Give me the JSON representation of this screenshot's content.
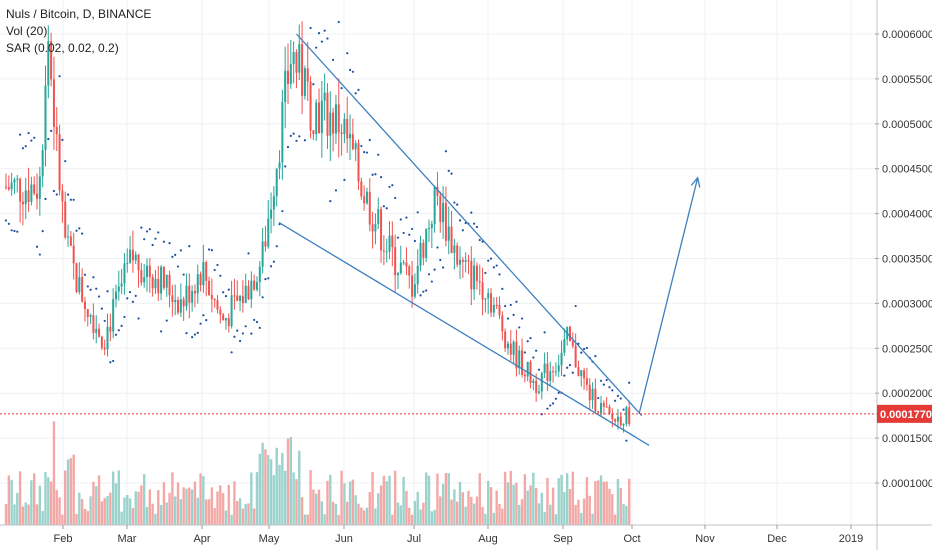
{
  "header": {
    "title": "Nuls / Bitcoin, D, BINANCE",
    "indicator_vol": "Vol (20)",
    "indicator_sar": "SAR (0.02, 0.02, 0.2)"
  },
  "chart_data": {
    "type": "candlestick",
    "y_ticks": [
      "0.00060000",
      "0.00055000",
      "0.00050000",
      "0.00045000",
      "0.00040000",
      "0.00035000",
      "0.00030000",
      "0.00025000",
      "0.00020000",
      "0.00015000",
      "0.00010000"
    ],
    "y_tick_values": [
      0.0006,
      0.00055,
      0.0005,
      0.00045,
      0.0004,
      0.00035,
      0.0003,
      0.00025,
      0.0002,
      0.00015,
      0.0001
    ],
    "x_ticks": [
      "Feb",
      "Mar",
      "Apr",
      "May",
      "Jun",
      "Jul",
      "Aug",
      "Sep",
      "Oct",
      "Nov",
      "Dec",
      "2019"
    ],
    "current_price": 0.000177,
    "current_price_label": "0.00017700",
    "grid": true,
    "colors": {
      "up": "#26a69a",
      "down": "#ef5350",
      "sar": "#1e4fa0",
      "trendline": "#3d7fc0",
      "price_line": "#e53935"
    },
    "price_path": [
      [
        0.00043,
        "Jan 20"
      ],
      [
        0.0006,
        "Jan 24"
      ],
      [
        0.00047,
        "Jan 28"
      ],
      [
        0.00037,
        "Feb 2"
      ],
      [
        0.00032,
        "Feb 8"
      ],
      [
        0.00026,
        "Feb 20"
      ],
      [
        0.00035,
        "Mar 3"
      ],
      [
        0.00033,
        "Mar 13"
      ],
      [
        0.0003,
        "Mar 23"
      ],
      [
        0.00034,
        "Apr 1"
      ],
      [
        0.00028,
        "Apr 10"
      ],
      [
        0.00031,
        "Apr 20"
      ],
      [
        0.00035,
        "Apr 28"
      ],
      [
        0.00048,
        "May 5"
      ],
      [
        0.00058,
        "May 10"
      ],
      [
        0.00052,
        "May 18"
      ],
      [
        0.0005,
        "May 30"
      ],
      [
        0.00042,
        "Jun 10"
      ],
      [
        0.00036,
        "Jun 20"
      ],
      [
        0.00032,
        "Jun 30"
      ],
      [
        0.00042,
        "Jul 10"
      ],
      [
        0.00034,
        "Jul 20"
      ],
      [
        0.00032,
        "Jul 30"
      ],
      [
        0.00025,
        "Aug 10"
      ],
      [
        0.00021,
        "Aug 20"
      ],
      [
        0.00024,
        "Aug 30"
      ],
      [
        0.00026,
        "Sep 3"
      ],
      [
        0.0002,
        "Sep 12"
      ],
      [
        0.00017,
        "Sep 22"
      ],
      [
        0.000177,
        "Oct 1"
      ]
    ],
    "annotations": [
      {
        "type": "upper-trendline",
        "from": [
          0.0006,
          "May 12"
        ],
        "to": [
          0.000175,
          "Oct 5"
        ]
      },
      {
        "type": "lower-trendline",
        "from": [
          0.00039,
          "May 5"
        ],
        "to": [
          0.000142,
          "Oct 8"
        ]
      },
      {
        "type": "arrow",
        "from": [
          0.000178,
          "Oct 4"
        ],
        "to": [
          0.00044,
          "Oct 28"
        ]
      }
    ]
  }
}
